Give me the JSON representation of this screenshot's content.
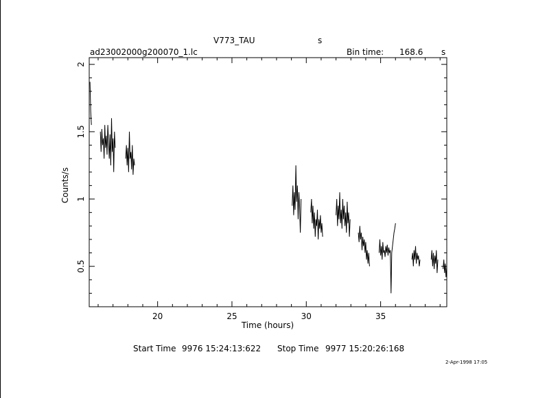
{
  "header": {
    "object": "V773_TAU",
    "object_unit": "s",
    "filename": "ad23002000g200070_1.lc",
    "bin_label": "Bin time:",
    "bin_value": "168.6",
    "bin_unit": "s"
  },
  "footer": {
    "start_label": "Start Time",
    "start_value": "9976  15:24:13:622",
    "stop_label": "Stop Time",
    "stop_value": "9977  15:20:26:168",
    "stamp": "2-Apr-1998 17:05"
  },
  "chart_data": {
    "type": "line",
    "title": "V773_TAU",
    "xlabel": "Time (hours)",
    "ylabel": "Counts/s",
    "xlim": [
      15.4,
      39.45
    ],
    "ylim": [
      0.2,
      2.05
    ],
    "x_ticks": [
      20,
      25,
      30,
      35
    ],
    "y_ticks": [
      0.5,
      1,
      1.5,
      2
    ],
    "x_tick_labels": [
      "20",
      "25",
      "30",
      "35"
    ],
    "y_tick_labels": [
      "0.5",
      "1",
      "1.5",
      "2"
    ],
    "grid": false,
    "series": [
      {
        "values": [
          [
            15.45,
            1.87
          ],
          [
            15.5,
            1.65
          ],
          [
            15.55,
            1.55
          ],
          [
            16.15,
            1.5
          ],
          [
            16.2,
            1.35
          ],
          [
            16.25,
            1.52
          ],
          [
            16.3,
            1.4
          ],
          [
            16.35,
            1.45
          ],
          [
            16.4,
            1.3
          ],
          [
            16.45,
            1.55
          ],
          [
            16.5,
            1.38
          ],
          [
            16.55,
            1.47
          ],
          [
            16.6,
            1.33
          ],
          [
            16.65,
            1.55
          ],
          [
            16.7,
            1.42
          ],
          [
            16.75,
            1.3
          ],
          [
            16.8,
            1.48
          ],
          [
            16.85,
            1.25
          ],
          [
            16.9,
            1.6
          ],
          [
            16.95,
            1.35
          ],
          [
            17.0,
            1.45
          ],
          [
            17.05,
            1.2
          ],
          [
            17.1,
            1.5
          ],
          [
            17.15,
            1.38
          ],
          [
            17.85,
            1.3
          ],
          [
            17.9,
            1.4
          ],
          [
            17.95,
            1.25
          ],
          [
            18.0,
            1.38
          ],
          [
            18.05,
            1.2
          ],
          [
            18.1,
            1.5
          ],
          [
            18.15,
            1.3
          ],
          [
            18.2,
            1.35
          ],
          [
            18.25,
            1.22
          ],
          [
            18.3,
            1.4
          ],
          [
            18.35,
            1.18
          ],
          [
            18.4,
            1.3
          ],
          [
            18.45,
            1.25
          ],
          [
            29.05,
            0.95
          ],
          [
            29.1,
            1.1
          ],
          [
            29.15,
            0.88
          ],
          [
            29.2,
            1.05
          ],
          [
            29.25,
            0.92
          ],
          [
            29.3,
            1.25
          ],
          [
            29.35,
            0.98
          ],
          [
            29.4,
            1.1
          ],
          [
            29.45,
            0.85
          ],
          [
            29.5,
            1.05
          ],
          [
            29.55,
            0.95
          ],
          [
            29.6,
            0.75
          ],
          [
            29.65,
            1.0
          ],
          [
            30.3,
            0.9
          ],
          [
            30.35,
            1.0
          ],
          [
            30.4,
            0.82
          ],
          [
            30.45,
            0.95
          ],
          [
            30.5,
            0.78
          ],
          [
            30.55,
            0.9
          ],
          [
            30.6,
            0.72
          ],
          [
            30.65,
            0.85
          ],
          [
            30.7,
            0.8
          ],
          [
            30.75,
            0.92
          ],
          [
            30.8,
            0.7
          ],
          [
            30.85,
            0.85
          ],
          [
            30.9,
            0.78
          ],
          [
            30.95,
            0.88
          ],
          [
            31.0,
            0.75
          ],
          [
            31.05,
            0.82
          ],
          [
            31.1,
            0.72
          ],
          [
            32.0,
            0.88
          ],
          [
            32.05,
            1.0
          ],
          [
            32.1,
            0.8
          ],
          [
            32.15,
            0.95
          ],
          [
            32.2,
            0.85
          ],
          [
            32.25,
            1.05
          ],
          [
            32.3,
            0.82
          ],
          [
            32.35,
            0.92
          ],
          [
            32.4,
            0.78
          ],
          [
            32.45,
            1.0
          ],
          [
            32.5,
            0.85
          ],
          [
            32.55,
            0.95
          ],
          [
            32.6,
            0.8
          ],
          [
            32.65,
            0.9
          ],
          [
            32.7,
            0.75
          ],
          [
            32.75,
            0.98
          ],
          [
            32.8,
            0.82
          ],
          [
            32.85,
            0.9
          ],
          [
            32.9,
            0.72
          ],
          [
            32.95,
            0.85
          ],
          [
            33.5,
            0.75
          ],
          [
            33.55,
            0.68
          ],
          [
            33.6,
            0.8
          ],
          [
            33.65,
            0.7
          ],
          [
            33.7,
            0.75
          ],
          [
            33.75,
            0.62
          ],
          [
            33.8,
            0.72
          ],
          [
            33.85,
            0.65
          ],
          [
            33.9,
            0.7
          ],
          [
            33.95,
            0.6
          ],
          [
            34.0,
            0.68
          ],
          [
            34.05,
            0.55
          ],
          [
            34.1,
            0.62
          ],
          [
            34.15,
            0.52
          ],
          [
            34.2,
            0.6
          ],
          [
            34.25,
            0.5
          ],
          [
            34.9,
            0.6
          ],
          [
            34.95,
            0.7
          ],
          [
            35.0,
            0.58
          ],
          [
            35.05,
            0.65
          ],
          [
            35.1,
            0.55
          ],
          [
            35.15,
            0.68
          ],
          [
            35.2,
            0.6
          ],
          [
            35.25,
            0.62
          ],
          [
            35.3,
            0.57
          ],
          [
            35.35,
            0.65
          ],
          [
            35.4,
            0.6
          ],
          [
            35.45,
            0.66
          ],
          [
            35.5,
            0.58
          ],
          [
            35.55,
            0.64
          ],
          [
            35.6,
            0.6
          ],
          [
            35.65,
            0.62
          ],
          [
            35.7,
            0.3
          ],
          [
            35.75,
            0.6
          ],
          [
            35.8,
            0.65
          ],
          [
            35.85,
            0.7
          ],
          [
            35.9,
            0.75
          ],
          [
            35.95,
            0.78
          ],
          [
            36.0,
            0.82
          ],
          [
            37.1,
            0.55
          ],
          [
            37.15,
            0.6
          ],
          [
            37.2,
            0.5
          ],
          [
            37.25,
            0.62
          ],
          [
            37.3,
            0.55
          ],
          [
            37.35,
            0.65
          ],
          [
            37.4,
            0.52
          ],
          [
            37.45,
            0.6
          ],
          [
            37.5,
            0.55
          ],
          [
            37.55,
            0.58
          ],
          [
            37.6,
            0.5
          ],
          [
            37.65,
            0.55
          ],
          [
            38.4,
            0.55
          ],
          [
            38.45,
            0.62
          ],
          [
            38.5,
            0.5
          ],
          [
            38.55,
            0.6
          ],
          [
            38.6,
            0.48
          ],
          [
            38.65,
            0.58
          ],
          [
            38.7,
            0.52
          ],
          [
            38.75,
            0.62
          ],
          [
            38.8,
            0.45
          ],
          [
            38.85,
            0.55
          ],
          [
            39.2,
            0.48
          ],
          [
            39.25,
            0.55
          ],
          [
            39.3,
            0.45
          ],
          [
            39.35,
            0.52
          ],
          [
            39.4,
            0.42
          ],
          [
            39.45,
            0.5
          ]
        ]
      }
    ]
  }
}
